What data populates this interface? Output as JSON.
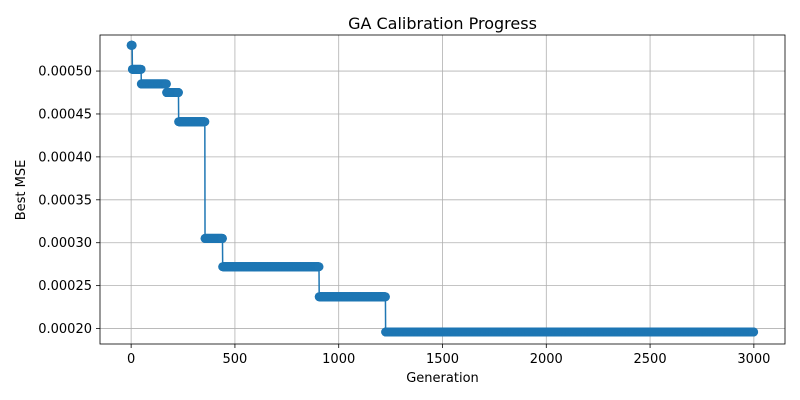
{
  "chart_data": {
    "type": "line",
    "title": "GA Calibration Progress",
    "xlabel": "Generation",
    "ylabel": "Best MSE",
    "xlim": [
      -150,
      3150
    ],
    "ylim": [
      0.000182,
      0.000542
    ],
    "xticks": [
      0,
      500,
      1000,
      1500,
      2000,
      2500,
      3000
    ],
    "yticks": [
      0.0002,
      0.00025,
      0.0003,
      0.00035,
      0.0004,
      0.00045,
      0.0005
    ],
    "xtick_labels": [
      "0",
      "500",
      "1000",
      "1500",
      "2000",
      "2500",
      "3000"
    ],
    "ytick_labels": [
      "0.00020",
      "0.00025",
      "0.00030",
      "0.00035",
      "0.00040",
      "0.00045",
      "0.00050"
    ],
    "grid": true,
    "marker": "circle",
    "color": "#1f77b4",
    "series": [
      {
        "steps": [
          {
            "from": 0,
            "to": 5,
            "value": 0.00053
          },
          {
            "from": 6,
            "to": 48,
            "value": 0.000502
          },
          {
            "from": 49,
            "to": 170,
            "value": 0.000485
          },
          {
            "from": 171,
            "to": 228,
            "value": 0.000475
          },
          {
            "from": 229,
            "to": 355,
            "value": 0.000441
          },
          {
            "from": 356,
            "to": 440,
            "value": 0.000305
          },
          {
            "from": 441,
            "to": 905,
            "value": 0.000272
          },
          {
            "from": 906,
            "to": 1225,
            "value": 0.000237
          },
          {
            "from": 1226,
            "to": 2999,
            "value": 0.000196
          }
        ]
      }
    ]
  }
}
